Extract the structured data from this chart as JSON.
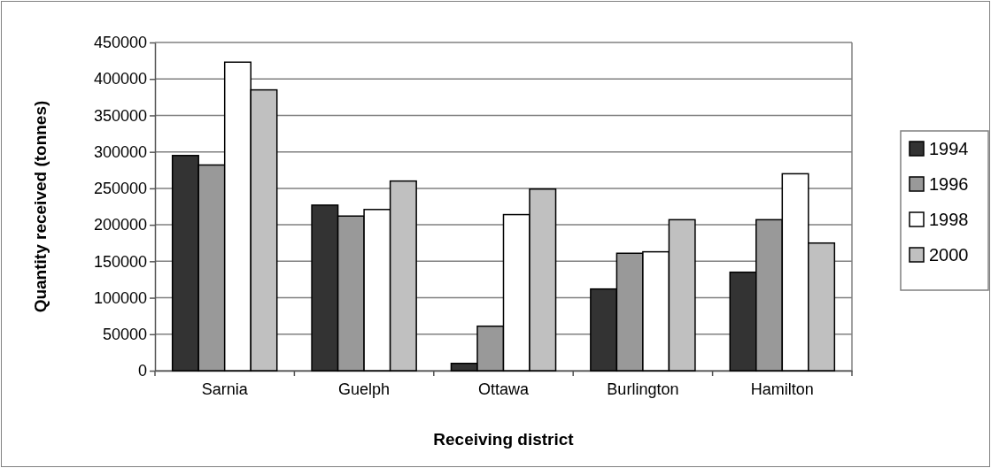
{
  "chart_data": {
    "type": "bar",
    "xlabel": "Receiving district",
    "ylabel": "Quantity received (tonnes)",
    "categories": [
      "Sarnia",
      "Guelph",
      "Ottawa",
      "Burlington",
      "Hamilton"
    ],
    "series": [
      {
        "name": "1994",
        "color": "#333333",
        "values": [
          295000,
          227000,
          10000,
          112000,
          135000
        ]
      },
      {
        "name": "1996",
        "color": "#999999",
        "values": [
          282000,
          212000,
          61000,
          161000,
          207000
        ]
      },
      {
        "name": "1998",
        "color": "#ffffff",
        "values": [
          423000,
          221000,
          214000,
          163000,
          270000
        ]
      },
      {
        "name": "2000",
        "color": "#c0c0c0",
        "values": [
          385000,
          260000,
          249000,
          207000,
          175000
        ]
      }
    ],
    "ylim": [
      0,
      450000
    ],
    "yticks": [
      0,
      50000,
      100000,
      150000,
      200000,
      250000,
      300000,
      350000,
      400000,
      450000
    ],
    "grid": "y",
    "legend": "right"
  }
}
